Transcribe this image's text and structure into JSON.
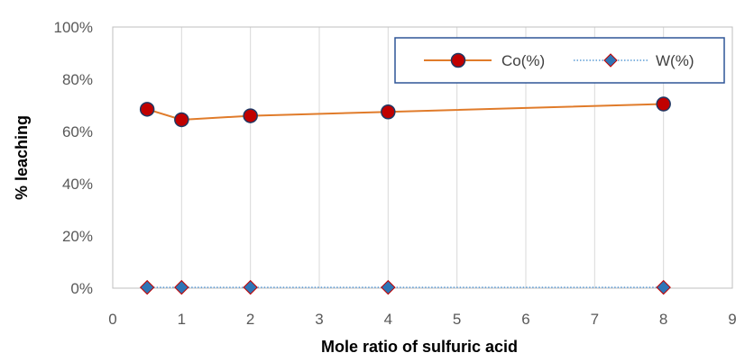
{
  "chart_data": {
    "type": "line",
    "xlabel": "Mole ratio of sulfuric acid",
    "ylabel": "% leaching",
    "xlim": [
      0,
      9
    ],
    "ylim": [
      0,
      100
    ],
    "x_ticks": [
      0,
      1,
      2,
      3,
      4,
      5,
      6,
      7,
      8,
      9
    ],
    "y_ticks": [
      0,
      20,
      40,
      60,
      80,
      100
    ],
    "y_tick_labels": [
      "0%",
      "20%",
      "40%",
      "60%",
      "80%",
      "100%"
    ],
    "grid": "vertical",
    "legend_position": "top-right",
    "series": [
      {
        "name": "Co(%)",
        "marker": "circle",
        "line_style": "solid",
        "line_color": "#E07B2A",
        "marker_fill": "#C00000",
        "marker_edge": "#1F3864",
        "x": [
          0.5,
          1,
          2,
          4,
          8
        ],
        "y": [
          68.5,
          64.5,
          66,
          67.5,
          70.5
        ]
      },
      {
        "name": "W(%)",
        "marker": "diamond",
        "line_style": "dotted",
        "line_color": "#5B9BD5",
        "marker_fill": "#2E75B6",
        "marker_edge": "#C00000",
        "x": [
          0.5,
          1,
          2,
          4,
          8
        ],
        "y": [
          0.3,
          0.3,
          0.3,
          0.3,
          0.3
        ]
      }
    ]
  }
}
